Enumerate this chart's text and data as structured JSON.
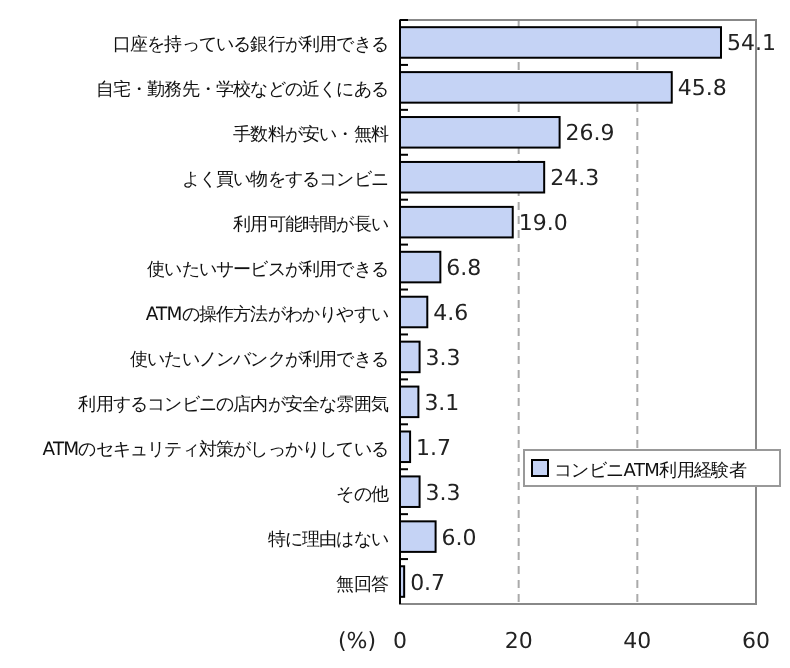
{
  "chart_data": {
    "type": "bar",
    "orientation": "horizontal",
    "categories": [
      "口座を持っている銀行が利用できる",
      "自宅・勤務先・学校などの近くにある",
      "手数料が安い・無料",
      "よく買い物をするコンビニ",
      "利用可能時間が長い",
      "使いたいサービスが利用できる",
      "ATMの操作方法がわかりやすい",
      "使いたいノンバンクが利用できる",
      "利用するコンビニの店内が安全な雰囲気",
      "ATMのセキュリティ対策がしっかりしている",
      "その他",
      "特に理由はない",
      "無回答"
    ],
    "series": [
      {
        "name": "コンビニATM利用経験者",
        "color": "#c5d3f5",
        "values": [
          54.1,
          45.8,
          26.9,
          24.3,
          19.0,
          6.8,
          4.6,
          3.3,
          3.1,
          1.7,
          3.3,
          6.0,
          0.7
        ]
      }
    ],
    "value_labels": [
      "54.1",
      "45.8",
      "26.9",
      "24.3",
      "19.0",
      "6.8",
      "4.6",
      "3.3",
      "3.1",
      "1.7",
      "3.3",
      "6.0",
      "0.7"
    ],
    "xlim": [
      0,
      60
    ],
    "xticks": [
      0,
      20,
      40,
      60
    ],
    "grid": "x",
    "legend": "right",
    "xlabel": "(%)"
  }
}
